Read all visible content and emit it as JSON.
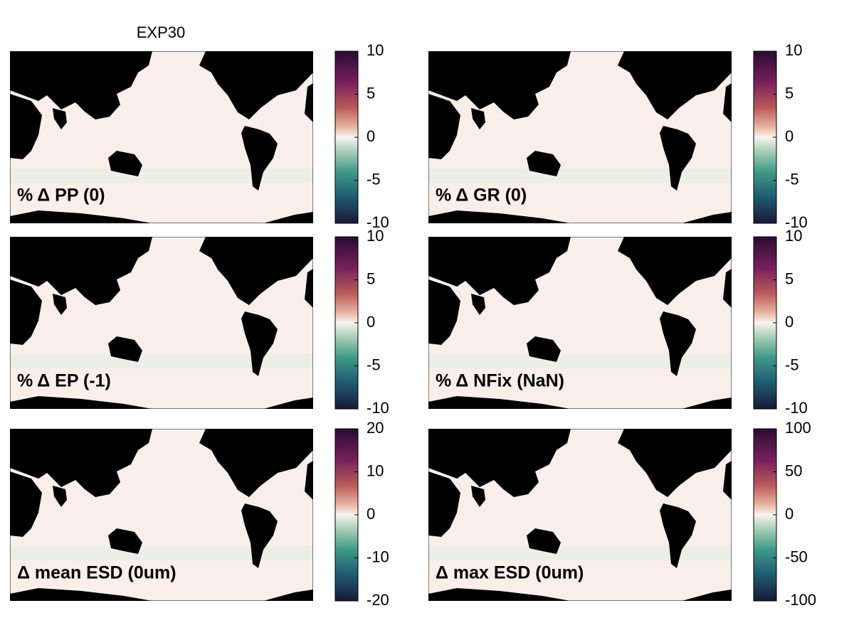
{
  "title": "EXP30",
  "panels": [
    {
      "label": "% Δ PP (0)",
      "colorbar": {
        "lim": [
          -10,
          10
        ],
        "ticks": [
          -10,
          -5,
          0,
          5,
          10
        ]
      }
    },
    {
      "label": "% Δ GR (0)",
      "colorbar": {
        "lim": [
          -10,
          10
        ],
        "ticks": [
          -10,
          -5,
          0,
          5,
          10
        ]
      }
    },
    {
      "label": "% Δ EP (-1)",
      "colorbar": {
        "lim": [
          -10,
          10
        ],
        "ticks": [
          -10,
          -5,
          0,
          5,
          10
        ]
      }
    },
    {
      "label": "% Δ NFix (NaN)",
      "colorbar": {
        "lim": [
          -10,
          10
        ],
        "ticks": [
          -10,
          -5,
          0,
          5,
          10
        ]
      }
    },
    {
      "label": "Δ mean ESD (0um)",
      "colorbar": {
        "lim": [
          -20,
          20
        ],
        "ticks": [
          -20,
          -10,
          0,
          10,
          20
        ]
      }
    },
    {
      "label": "Δ max ESD (0um)",
      "colorbar": {
        "lim": [
          -100,
          100
        ],
        "ticks": [
          -100,
          -50,
          0,
          50,
          100
        ]
      }
    }
  ]
}
